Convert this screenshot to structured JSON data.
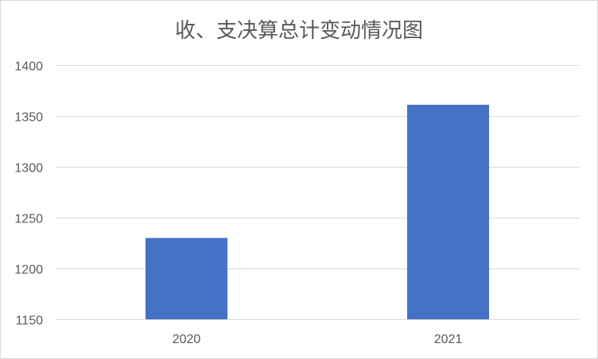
{
  "chart_data": {
    "type": "bar",
    "title": "收、支决算总计变动情况图",
    "categories": [
      "2020",
      "2021"
    ],
    "values": [
      1230,
      1361
    ],
    "ylim": [
      1150,
      1400
    ],
    "yticks": [
      1150,
      1200,
      1250,
      1300,
      1350,
      1400
    ],
    "grid": true,
    "bar_color": "#4472C4",
    "grid_color": "#d9d9d9"
  }
}
